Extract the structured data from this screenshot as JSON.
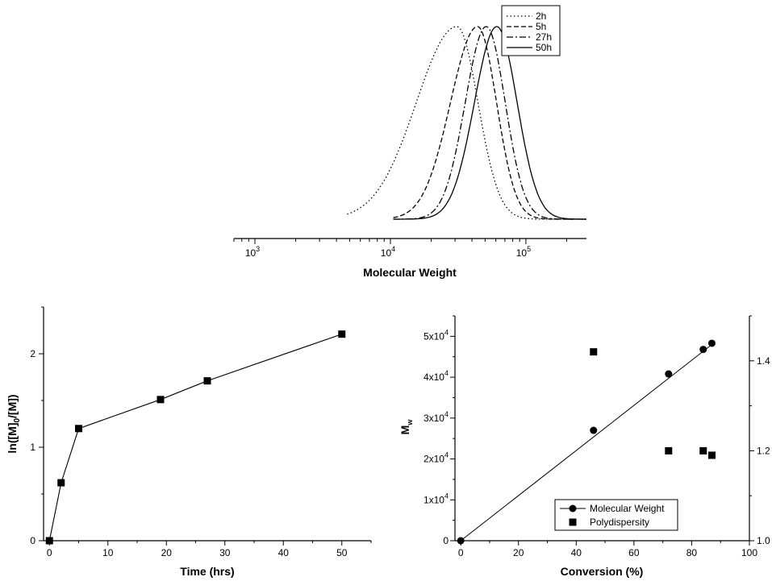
{
  "colors": {
    "ink": "#000000",
    "background": "#ffffff"
  },
  "chart_data": [
    {
      "id": "mwd",
      "type": "line",
      "xlabel": "Molecular Weight",
      "x_scale": "log",
      "xlim": [
        700,
        280000
      ],
      "x_tick_labels": [
        {
          "value": 1000,
          "mantissa": "10",
          "exp": "3"
        },
        {
          "value": 10000,
          "mantissa": "10",
          "exp": "4"
        },
        {
          "value": 100000,
          "mantissa": "10",
          "exp": "5"
        }
      ],
      "y_axis_shown": false,
      "legend": {
        "placement": "top-right"
      },
      "series": [
        {
          "name": "2h",
          "dash": "dotted",
          "peak": 31000,
          "left_sigma": 0.3,
          "right_sigma": 0.155,
          "x_start": 4800,
          "x_end": 280000
        },
        {
          "name": "5h",
          "dash": "dashed",
          "peak": 44000,
          "left_sigma": 0.2,
          "right_sigma": 0.14,
          "x_start": 10500,
          "x_end": 280000
        },
        {
          "name": "27h",
          "dash": "dash-dot",
          "peak": 51000,
          "left_sigma": 0.155,
          "right_sigma": 0.14,
          "x_start": 10500,
          "x_end": 280000
        },
        {
          "name": "50h",
          "dash": "solid",
          "peak": 61000,
          "left_sigma": 0.165,
          "right_sigma": 0.15,
          "x_start": 10500,
          "x_end": 280000
        }
      ]
    },
    {
      "id": "kinetics",
      "type": "line",
      "xlabel": "Time (hrs)",
      "ylabel": {
        "main": "ln([M]",
        "sub": "0",
        "rest": "/[M])"
      },
      "xlim": [
        -1,
        55
      ],
      "ylim": [
        0,
        2.5
      ],
      "x_ticks": [
        0,
        10,
        20,
        30,
        40,
        50
      ],
      "y_ticks": [
        0,
        1,
        2
      ],
      "series": [
        {
          "marker": "square",
          "x": [
            0,
            2,
            5,
            19,
            27,
            50
          ],
          "y": [
            0,
            0.62,
            1.2,
            1.51,
            1.71,
            2.21
          ]
        }
      ]
    },
    {
      "id": "conversion",
      "type": "scatter",
      "xlabel": "Conversion (%)",
      "ylabel": {
        "main": "M",
        "sub": "w"
      },
      "xlim": [
        -2,
        100
      ],
      "ylim_left": [
        0,
        55000
      ],
      "ylim_right": [
        1.0,
        1.5
      ],
      "x_ticks": [
        0,
        20,
        40,
        60,
        80,
        100
      ],
      "y_left_ticks": [
        {
          "value": 0,
          "label": "0"
        },
        {
          "value": 10000,
          "label": "1x10",
          "exp": "4"
        },
        {
          "value": 20000,
          "label": "2x10",
          "exp": "4"
        },
        {
          "value": 30000,
          "label": "3x10",
          "exp": "4"
        },
        {
          "value": 40000,
          "label": "4x10",
          "exp": "4"
        },
        {
          "value": 50000,
          "label": "5x10",
          "exp": "4"
        }
      ],
      "y_right_ticks": [
        "1.0",
        "1.2",
        "1.4"
      ],
      "legend": {
        "placement": "bottom-right"
      },
      "fit_line": {
        "x": [
          0,
          87
        ],
        "y": [
          0,
          48000
        ]
      },
      "series": [
        {
          "name": "Molecular Weight",
          "marker": "circle",
          "axis": "left",
          "x": [
            0,
            46,
            72,
            84,
            87
          ],
          "y": [
            0,
            27000,
            40800,
            46800,
            48300
          ]
        },
        {
          "name": "Polydispersity",
          "marker": "square",
          "axis": "right",
          "x": [
            46,
            72,
            84,
            87
          ],
          "y": [
            1.42,
            1.2,
            1.2,
            1.19
          ]
        }
      ]
    }
  ]
}
